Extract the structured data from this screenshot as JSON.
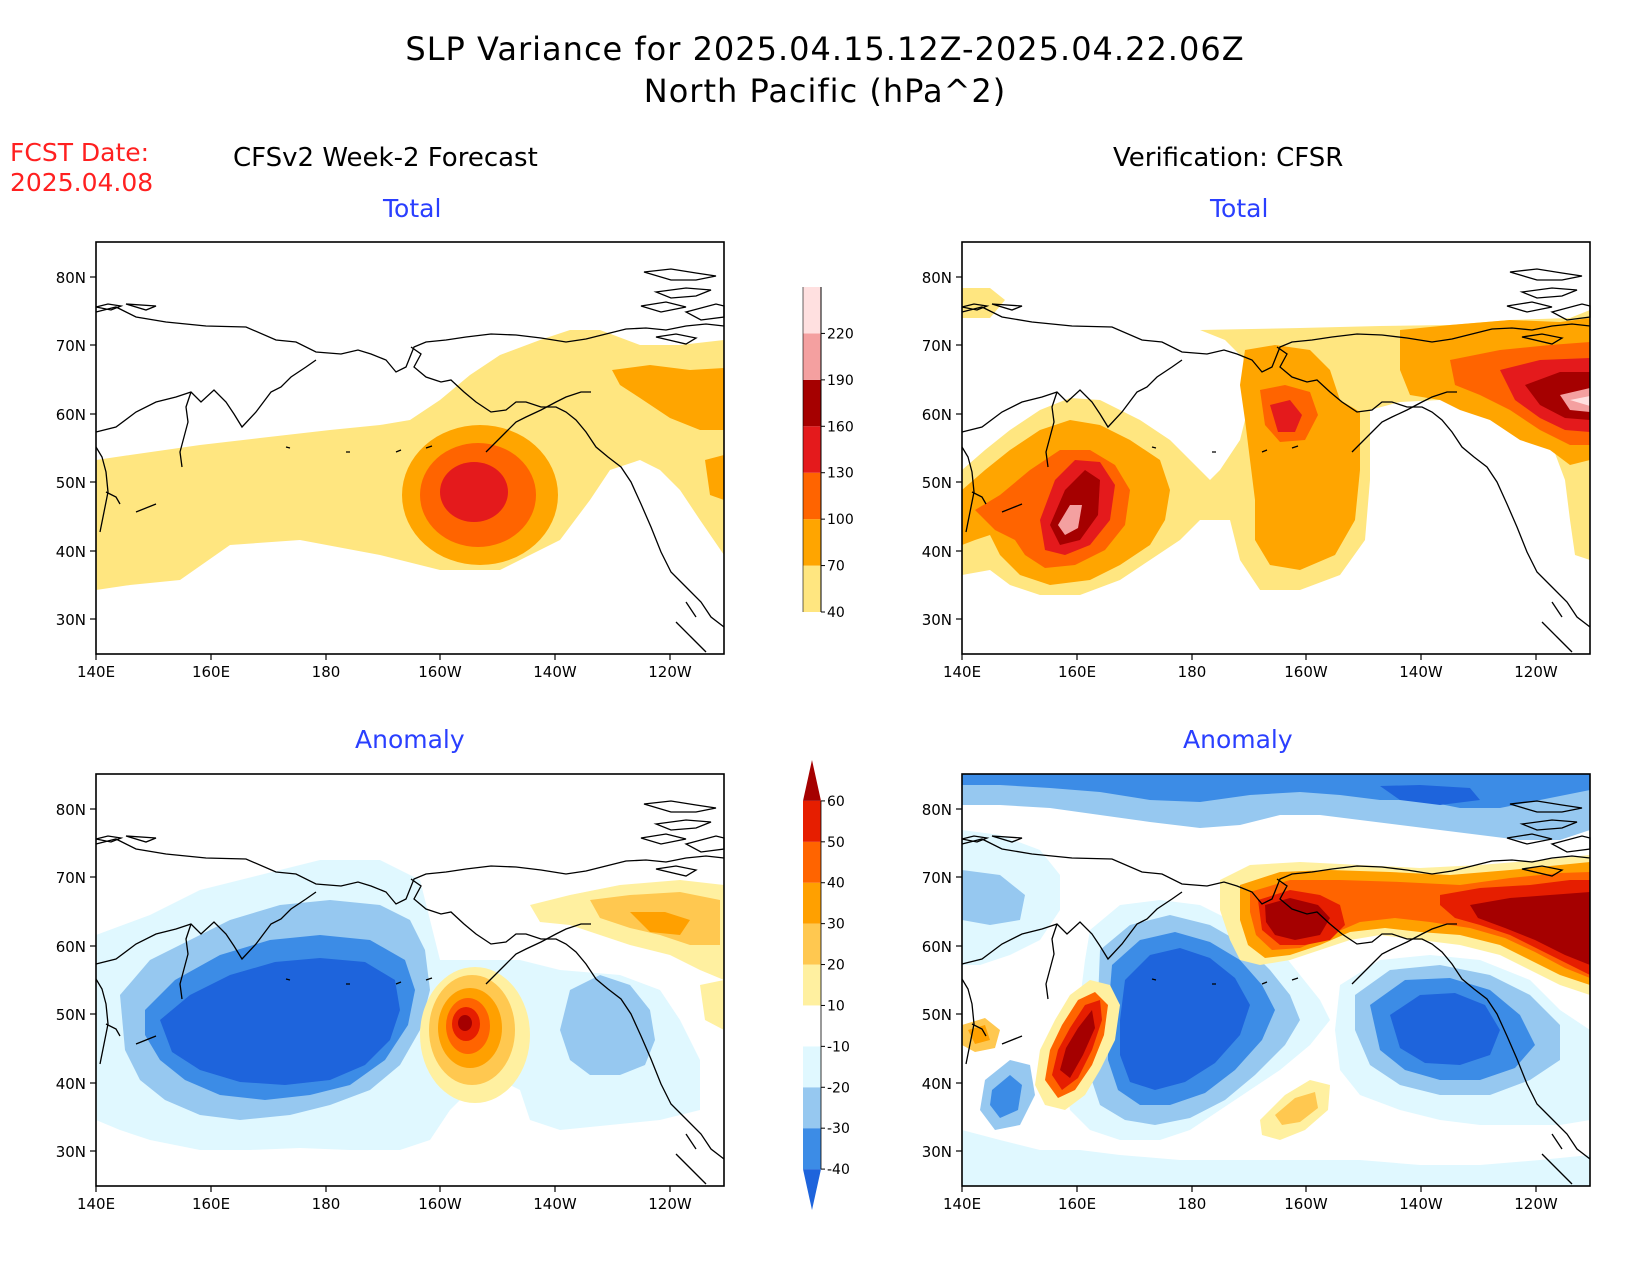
{
  "title_line1": "SLP Variance for 2025.04.15.12Z-2025.04.22.06Z",
  "title_line2": "North Pacific (hPa^2)",
  "fcst_label": "FCST Date:",
  "fcst_date": "2025.04.08",
  "left_column_title": "CFSv2 Week-2 Forecast",
  "right_column_title": "Verification: CFSR",
  "total_label": "Total",
  "anomaly_label": "Anomaly",
  "lat_labels": [
    "80N",
    "70N",
    "60N",
    "50N",
    "40N",
    "30N"
  ],
  "lon_labels": [
    "140E",
    "160E",
    "180",
    "160W",
    "140W",
    "120W"
  ],
  "total_colorbar": {
    "levels": [
      "40",
      "70",
      "100",
      "130",
      "160",
      "190",
      "220"
    ],
    "colors": [
      "#ffe680",
      "#ffa500",
      "#ff6400",
      "#e41a1c",
      "#a50000",
      "#f4a0a0",
      "#ffe0e0"
    ]
  },
  "anomaly_colorbar": {
    "levels": [
      "-40",
      "-30",
      "-20",
      "-10",
      "10",
      "20",
      "30",
      "40",
      "50",
      "60"
    ],
    "colors": [
      "#1e64dc",
      "#3c8ce6",
      "#96c8f0",
      "#e0f8ff",
      "#ffffff",
      "#fff0a0",
      "#ffc850",
      "#ffa000",
      "#ff6400",
      "#e61e00",
      "#a50000"
    ]
  },
  "panels": [
    {
      "id": "fcst-total",
      "label": "Total"
    },
    {
      "id": "cfsr-total",
      "label": "Total"
    },
    {
      "id": "fcst-anomaly",
      "label": "Anomaly"
    },
    {
      "id": "cfsr-anomaly",
      "label": "Anomaly"
    }
  ]
}
